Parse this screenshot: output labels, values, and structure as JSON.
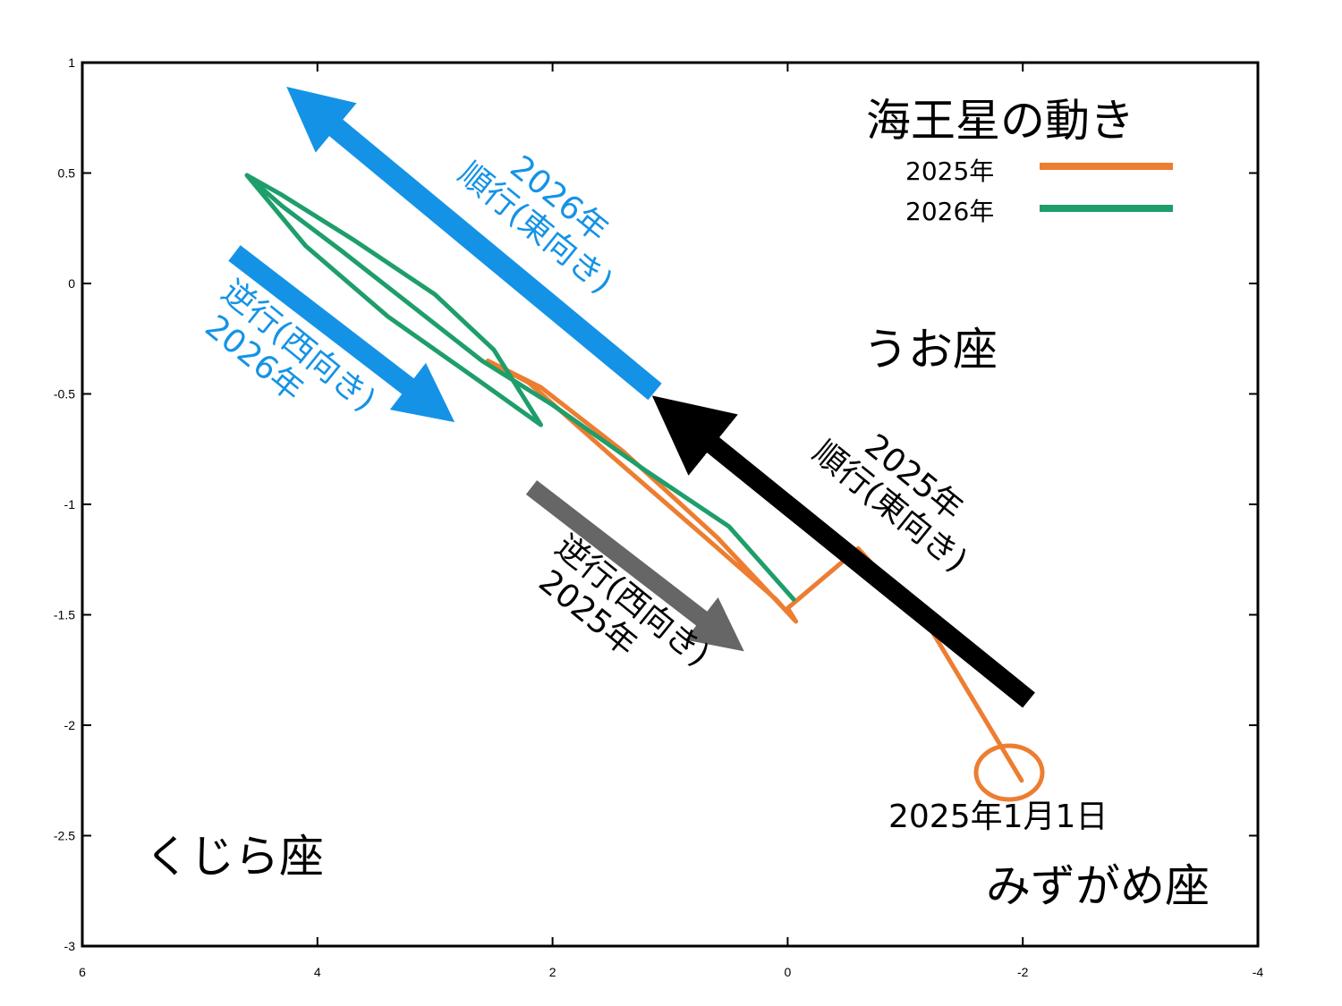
{
  "chart_data": {
    "type": "line",
    "title": "海王星の動き",
    "xlim": [
      6,
      -4
    ],
    "ylim": [
      -3,
      1
    ],
    "x_ticks": [
      "6",
      "4",
      "2",
      "0",
      "-2",
      "-4"
    ],
    "y_ticks": [
      "1",
      "0.5",
      "0",
      "-0.5",
      "-1",
      "-1.5",
      "-2",
      "-2.5",
      "-3"
    ],
    "legend": {
      "position": "top-right",
      "items": [
        {
          "name": "2025年",
          "color": "#ED7D31"
        },
        {
          "name": "2026年",
          "color": "#1E9E6A"
        }
      ]
    },
    "series": [
      {
        "name": "2025年",
        "color": "#ED7D31",
        "x": [
          -1.99,
          -1.2,
          -0.6,
          0.0,
          -0.07,
          0.6,
          1.4,
          2.1,
          2.55,
          2.2,
          1.5,
          0.7,
          0.1,
          -0.05
        ],
        "y": [
          -2.25,
          -1.55,
          -1.2,
          -1.47,
          -1.53,
          -1.15,
          -0.76,
          -0.47,
          -0.35,
          -0.45,
          -0.78,
          -1.15,
          -1.43,
          -1.52
        ]
      },
      {
        "name": "2026年",
        "color": "#1E9E6A",
        "x": [
          -0.05,
          0.5,
          1.2,
          2.0,
          2.6,
          3.2,
          3.8,
          4.3,
          4.6,
          4.3,
          3.7,
          3.0,
          2.5,
          2.1,
          2.6,
          3.4,
          4.1,
          4.6
        ],
        "y": [
          -1.43,
          -1.1,
          -0.85,
          -0.55,
          -0.35,
          -0.1,
          0.15,
          0.35,
          0.49,
          0.4,
          0.2,
          -0.05,
          -0.3,
          -0.64,
          -0.45,
          -0.15,
          0.17,
          0.49
        ]
      }
    ],
    "annotations": {
      "constellations": [
        "うお座",
        "くじら座",
        "みずがめ座"
      ],
      "start_label": "2025年1月1日",
      "arrows": [
        {
          "label_lines": [
            "2025年",
            "順行(東向き)"
          ],
          "color": "#000000"
        },
        {
          "label_lines": [
            "逆行(西向き)",
            "2025年"
          ],
          "color": "#666666"
        },
        {
          "label_lines": [
            "2026年",
            "順行(東向き)"
          ],
          "color": "#1493E6"
        },
        {
          "label_lines": [
            "逆行(西向き)",
            "2026年"
          ],
          "color": "#1493E6"
        }
      ]
    }
  }
}
